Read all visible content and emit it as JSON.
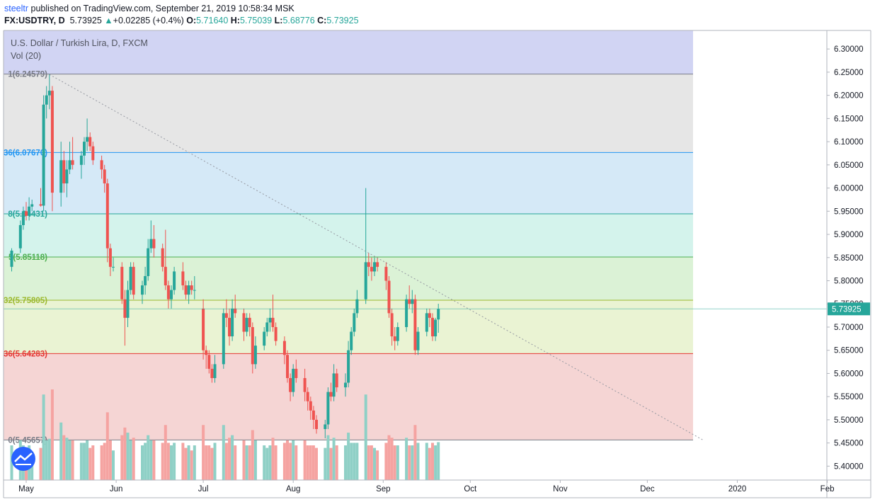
{
  "header": {
    "author": "steeltr",
    "published_text": "published on TradingView.com, September 21, 2019 10:58:34 MSK",
    "symbol": "FX:USDTRY, D",
    "last": "5.73925",
    "change": "+0.02285 (+0.4%)",
    "o_label": "O:",
    "o_value": "5.71640",
    "h_label": "H:",
    "h_value": "5.75039",
    "l_label": "L:",
    "l_value": "5.68776",
    "c_label": "C:",
    "c_value": "5.73925"
  },
  "colors": {
    "up": "#26a69a",
    "down": "#ef5350",
    "vol_up": "#8fd0c6",
    "vol_down": "#f5a3a1"
  },
  "chart_data": {
    "type": "candlestick",
    "title": "U.S. Dollar / Turkish Lira, D, FXCM",
    "volume_label": "Vol (20)",
    "ylim": [
      5.37,
      6.34
    ],
    "y_ticks": [
      "6.30000",
      "6.25000",
      "6.20000",
      "6.15000",
      "6.10000",
      "6.05000",
      "6.00000",
      "5.95000",
      "5.90000",
      "5.85000",
      "5.80000",
      "5.75000",
      "5.70000",
      "5.65000",
      "5.60000",
      "5.55000",
      "5.50000",
      "5.45000",
      "5.40000"
    ],
    "x_ticks": [
      {
        "label": "May",
        "date": "2019-05-01"
      },
      {
        "label": "Jun",
        "date": "2019-06-01"
      },
      {
        "label": "Jul",
        "date": "2019-07-01"
      },
      {
        "label": "Aug",
        "date": "2019-08-01"
      },
      {
        "label": "Sep",
        "date": "2019-09-01"
      },
      {
        "label": "Oct",
        "date": "2019-10-01"
      },
      {
        "label": "Nov",
        "date": "2019-11-01"
      },
      {
        "label": "Dec",
        "date": "2019-12-01"
      },
      {
        "label": "2020",
        "date": "2020-01-01"
      },
      {
        "label": "Feb",
        "date": "2020-02-01"
      }
    ],
    "last_price": "5.73925",
    "last_value": 5.73925,
    "fib_levels": [
      {
        "label": "1(6.24579)",
        "value": 6.24579,
        "color": "#787b86",
        "fill": "#e6e6e6"
      },
      {
        "label": "36(6.07670)",
        "value": 6.0767,
        "color": "#2196f3",
        "fill": "#d5e9f7"
      },
      {
        "label": "8(5.94431)",
        "value": 5.94431,
        "color": "#26a69a",
        "fill": "#d4f3ec"
      },
      {
        "label": "5(5.85118)",
        "value": 5.85118,
        "color": "#4caf50",
        "fill": "#dbf2d6"
      },
      {
        "label": "32(5.75805)",
        "value": 5.75805,
        "color": "#9cb92e",
        "fill": "#eaf3d3"
      },
      {
        "label": "36(5.64283)",
        "value": 5.64283,
        "color": "#e53935",
        "fill": "#f5d5d4"
      },
      {
        "label": "0(5.45657)",
        "value": 5.45657,
        "color": "#787b86",
        "fill": null
      }
    ],
    "fib_top_fill": "#d1d4f3",
    "trendline": {
      "start": {
        "date": "2019-05-09",
        "value": 6.245
      },
      "end": {
        "date": "2019-12-20",
        "value": 5.457
      }
    },
    "candles": [
      {
        "date": "2019-04-26",
        "o": 5.83,
        "h": 5.87,
        "l": 5.82,
        "c": 5.865
      },
      {
        "date": "2019-04-29",
        "o": 5.87,
        "h": 5.93,
        "l": 5.86,
        "c": 5.92
      },
      {
        "date": "2019-04-30",
        "o": 5.92,
        "h": 5.96,
        "l": 5.91,
        "c": 5.95
      },
      {
        "date": "2019-05-01",
        "o": 5.95,
        "h": 5.97,
        "l": 5.93,
        "c": 5.94
      },
      {
        "date": "2019-05-02",
        "o": 5.94,
        "h": 5.98,
        "l": 5.93,
        "c": 5.96
      },
      {
        "date": "2019-05-03",
        "o": 5.96,
        "h": 5.975,
        "l": 5.95,
        "c": 5.965
      },
      {
        "date": "2019-05-06",
        "o": 5.965,
        "h": 6.0,
        "l": 5.96,
        "c": 5.962
      },
      {
        "date": "2019-05-07",
        "o": 5.962,
        "h": 6.2,
        "l": 5.95,
        "c": 6.18
      },
      {
        "date": "2019-05-08",
        "o": 6.18,
        "h": 6.22,
        "l": 6.15,
        "c": 6.2
      },
      {
        "date": "2019-05-09",
        "o": 6.2,
        "h": 6.246,
        "l": 6.17,
        "c": 6.21
      },
      {
        "date": "2019-05-10",
        "o": 6.21,
        "h": 6.22,
        "l": 5.95,
        "c": 5.99
      },
      {
        "date": "2019-05-13",
        "o": 5.99,
        "h": 6.1,
        "l": 5.96,
        "c": 6.06
      },
      {
        "date": "2019-05-14",
        "o": 6.06,
        "h": 6.08,
        "l": 5.99,
        "c": 6.01
      },
      {
        "date": "2019-05-15",
        "o": 6.01,
        "h": 6.06,
        "l": 5.98,
        "c": 6.04
      },
      {
        "date": "2019-05-16",
        "o": 6.04,
        "h": 6.1,
        "l": 6.03,
        "c": 6.06
      },
      {
        "date": "2019-05-17",
        "o": 6.06,
        "h": 6.11,
        "l": 6.04,
        "c": 6.05
      },
      {
        "date": "2019-05-20",
        "o": 6.05,
        "h": 6.08,
        "l": 6.02,
        "c": 6.07
      },
      {
        "date": "2019-05-21",
        "o": 6.07,
        "h": 6.11,
        "l": 6.05,
        "c": 6.1
      },
      {
        "date": "2019-05-22",
        "o": 6.1,
        "h": 6.15,
        "l": 6.08,
        "c": 6.11
      },
      {
        "date": "2019-05-23",
        "o": 6.11,
        "h": 6.12,
        "l": 6.08,
        "c": 6.09
      },
      {
        "date": "2019-05-24",
        "o": 6.09,
        "h": 6.1,
        "l": 6.05,
        "c": 6.06
      },
      {
        "date": "2019-05-27",
        "o": 6.06,
        "h": 6.07,
        "l": 6.02,
        "c": 6.04
      },
      {
        "date": "2019-05-28",
        "o": 6.04,
        "h": 6.05,
        "l": 5.99,
        "c": 6.01
      },
      {
        "date": "2019-05-29",
        "o": 6.01,
        "h": 6.02,
        "l": 5.84,
        "c": 5.87
      },
      {
        "date": "2019-05-30",
        "o": 5.87,
        "h": 5.88,
        "l": 5.81,
        "c": 5.83
      },
      {
        "date": "2019-05-31",
        "o": 5.83,
        "h": 5.85,
        "l": 5.82,
        "c": 5.83
      },
      {
        "date": "2019-06-03",
        "o": 5.83,
        "h": 5.84,
        "l": 5.75,
        "c": 5.76
      },
      {
        "date": "2019-06-04",
        "o": 5.76,
        "h": 5.78,
        "l": 5.66,
        "c": 5.72
      },
      {
        "date": "2019-06-05",
        "o": 5.72,
        "h": 5.8,
        "l": 5.7,
        "c": 5.78
      },
      {
        "date": "2019-06-06",
        "o": 5.78,
        "h": 5.84,
        "l": 5.77,
        "c": 5.83
      },
      {
        "date": "2019-06-07",
        "o": 5.83,
        "h": 5.84,
        "l": 5.76,
        "c": 5.77
      },
      {
        "date": "2019-06-10",
        "o": 5.77,
        "h": 5.8,
        "l": 5.75,
        "c": 5.79
      },
      {
        "date": "2019-06-11",
        "o": 5.79,
        "h": 5.83,
        "l": 5.77,
        "c": 5.81
      },
      {
        "date": "2019-06-12",
        "o": 5.81,
        "h": 5.89,
        "l": 5.8,
        "c": 5.87
      },
      {
        "date": "2019-06-13",
        "o": 5.87,
        "h": 5.93,
        "l": 5.86,
        "c": 5.89
      },
      {
        "date": "2019-06-14",
        "o": 5.89,
        "h": 5.92,
        "l": 5.85,
        "c": 5.87
      },
      {
        "date": "2019-06-17",
        "o": 5.87,
        "h": 5.88,
        "l": 5.82,
        "c": 5.83
      },
      {
        "date": "2019-06-18",
        "o": 5.83,
        "h": 5.91,
        "l": 5.78,
        "c": 5.79
      },
      {
        "date": "2019-06-19",
        "o": 5.79,
        "h": 5.8,
        "l": 5.74,
        "c": 5.76
      },
      {
        "date": "2019-06-20",
        "o": 5.76,
        "h": 5.79,
        "l": 5.74,
        "c": 5.78
      },
      {
        "date": "2019-06-21",
        "o": 5.78,
        "h": 5.83,
        "l": 5.77,
        "c": 5.82
      },
      {
        "date": "2019-06-24",
        "o": 5.82,
        "h": 5.84,
        "l": 5.78,
        "c": 5.79
      },
      {
        "date": "2019-06-25",
        "o": 5.79,
        "h": 5.8,
        "l": 5.76,
        "c": 5.77
      },
      {
        "date": "2019-06-26",
        "o": 5.77,
        "h": 5.8,
        "l": 5.75,
        "c": 5.79
      },
      {
        "date": "2019-06-27",
        "o": 5.79,
        "h": 5.8,
        "l": 5.77,
        "c": 5.78
      },
      {
        "date": "2019-06-28",
        "o": 5.78,
        "h": 5.81,
        "l": 5.76,
        "c": 5.78
      },
      {
        "date": "2019-07-01",
        "o": 5.74,
        "h": 5.76,
        "l": 5.63,
        "c": 5.65
      },
      {
        "date": "2019-07-02",
        "o": 5.65,
        "h": 5.66,
        "l": 5.61,
        "c": 5.64
      },
      {
        "date": "2019-07-03",
        "o": 5.64,
        "h": 5.65,
        "l": 5.6,
        "c": 5.61
      },
      {
        "date": "2019-07-04",
        "o": 5.61,
        "h": 5.62,
        "l": 5.58,
        "c": 5.59
      },
      {
        "date": "2019-07-05",
        "o": 5.59,
        "h": 5.64,
        "l": 5.58,
        "c": 5.62
      },
      {
        "date": "2019-07-08",
        "o": 5.62,
        "h": 5.74,
        "l": 5.61,
        "c": 5.73
      },
      {
        "date": "2019-07-09",
        "o": 5.73,
        "h": 5.76,
        "l": 5.7,
        "c": 5.72
      },
      {
        "date": "2019-07-10",
        "o": 5.72,
        "h": 5.74,
        "l": 5.66,
        "c": 5.68
      },
      {
        "date": "2019-07-11",
        "o": 5.68,
        "h": 5.76,
        "l": 5.67,
        "c": 5.74
      },
      {
        "date": "2019-07-12",
        "o": 5.74,
        "h": 5.77,
        "l": 5.72,
        "c": 5.73
      },
      {
        "date": "2019-07-15",
        "o": 5.73,
        "h": 5.74,
        "l": 5.67,
        "c": 5.69
      },
      {
        "date": "2019-07-16",
        "o": 5.69,
        "h": 5.73,
        "l": 5.68,
        "c": 5.72
      },
      {
        "date": "2019-07-17",
        "o": 5.72,
        "h": 5.73,
        "l": 5.68,
        "c": 5.7
      },
      {
        "date": "2019-07-18",
        "o": 5.7,
        "h": 5.71,
        "l": 5.6,
        "c": 5.62
      },
      {
        "date": "2019-07-19",
        "o": 5.62,
        "h": 5.68,
        "l": 5.61,
        "c": 5.66
      },
      {
        "date": "2019-07-22",
        "o": 5.66,
        "h": 5.7,
        "l": 5.65,
        "c": 5.69
      },
      {
        "date": "2019-07-23",
        "o": 5.69,
        "h": 5.72,
        "l": 5.68,
        "c": 5.71
      },
      {
        "date": "2019-07-24",
        "o": 5.71,
        "h": 5.74,
        "l": 5.69,
        "c": 5.72
      },
      {
        "date": "2019-07-25",
        "o": 5.72,
        "h": 5.77,
        "l": 5.69,
        "c": 5.7
      },
      {
        "date": "2019-07-26",
        "o": 5.7,
        "h": 5.71,
        "l": 5.66,
        "c": 5.67
      },
      {
        "date": "2019-07-29",
        "o": 5.67,
        "h": 5.68,
        "l": 5.62,
        "c": 5.64
      },
      {
        "date": "2019-07-30",
        "o": 5.64,
        "h": 5.65,
        "l": 5.58,
        "c": 5.59
      },
      {
        "date": "2019-07-31",
        "o": 5.59,
        "h": 5.6,
        "l": 5.54,
        "c": 5.56
      },
      {
        "date": "2019-08-01",
        "o": 5.56,
        "h": 5.62,
        "l": 5.55,
        "c": 5.61
      },
      {
        "date": "2019-08-02",
        "o": 5.61,
        "h": 5.63,
        "l": 5.58,
        "c": 5.59
      },
      {
        "date": "2019-08-05",
        "o": 5.59,
        "h": 5.61,
        "l": 5.54,
        "c": 5.56
      },
      {
        "date": "2019-08-06",
        "o": 5.56,
        "h": 5.57,
        "l": 5.52,
        "c": 5.54
      },
      {
        "date": "2019-08-07",
        "o": 5.54,
        "h": 5.55,
        "l": 5.5,
        "c": 5.52
      },
      {
        "date": "2019-08-08",
        "o": 5.52,
        "h": 5.53,
        "l": 5.48,
        "c": 5.5
      },
      {
        "date": "2019-08-09",
        "o": 5.5,
        "h": 5.51,
        "l": 5.47,
        "c": 5.48
      },
      {
        "date": "2019-08-12",
        "o": 5.48,
        "h": 5.5,
        "l": 5.46,
        "c": 5.49
      },
      {
        "date": "2019-08-13",
        "o": 5.49,
        "h": 5.57,
        "l": 5.48,
        "c": 5.56
      },
      {
        "date": "2019-08-14",
        "o": 5.56,
        "h": 5.58,
        "l": 5.54,
        "c": 5.55
      },
      {
        "date": "2019-08-15",
        "o": 5.55,
        "h": 5.62,
        "l": 5.54,
        "c": 5.6
      },
      {
        "date": "2019-08-16",
        "o": 5.6,
        "h": 5.61,
        "l": 5.56,
        "c": 5.57
      },
      {
        "date": "2019-08-19",
        "o": 5.57,
        "h": 5.6,
        "l": 5.55,
        "c": 5.58
      },
      {
        "date": "2019-08-20",
        "o": 5.58,
        "h": 5.67,
        "l": 5.57,
        "c": 5.65
      },
      {
        "date": "2019-08-21",
        "o": 5.65,
        "h": 5.7,
        "l": 5.64,
        "c": 5.69
      },
      {
        "date": "2019-08-22",
        "o": 5.69,
        "h": 5.74,
        "l": 5.68,
        "c": 5.73
      },
      {
        "date": "2019-08-23",
        "o": 5.73,
        "h": 5.78,
        "l": 5.72,
        "c": 5.76
      },
      {
        "date": "2019-08-26",
        "o": 5.76,
        "h": 6.0,
        "l": 5.75,
        "c": 5.84
      },
      {
        "date": "2019-08-27",
        "o": 5.84,
        "h": 5.86,
        "l": 5.81,
        "c": 5.83
      },
      {
        "date": "2019-08-28",
        "o": 5.83,
        "h": 5.85,
        "l": 5.8,
        "c": 5.82
      },
      {
        "date": "2019-08-29",
        "o": 5.82,
        "h": 5.85,
        "l": 5.81,
        "c": 5.84
      },
      {
        "date": "2019-08-30",
        "o": 5.84,
        "h": 5.85,
        "l": 5.82,
        "c": 5.83
      },
      {
        "date": "2019-09-02",
        "o": 5.83,
        "h": 5.84,
        "l": 5.78,
        "c": 5.8
      },
      {
        "date": "2019-09-03",
        "o": 5.8,
        "h": 5.81,
        "l": 5.72,
        "c": 5.73
      },
      {
        "date": "2019-09-04",
        "o": 5.73,
        "h": 5.74,
        "l": 5.66,
        "c": 5.68
      },
      {
        "date": "2019-09-05",
        "o": 5.68,
        "h": 5.7,
        "l": 5.65,
        "c": 5.67
      },
      {
        "date": "2019-09-06",
        "o": 5.67,
        "h": 5.71,
        "l": 5.66,
        "c": 5.7
      },
      {
        "date": "2019-09-09",
        "o": 5.7,
        "h": 5.77,
        "l": 5.69,
        "c": 5.76
      },
      {
        "date": "2019-09-10",
        "o": 5.76,
        "h": 5.79,
        "l": 5.74,
        "c": 5.75
      },
      {
        "date": "2019-09-11",
        "o": 5.75,
        "h": 5.78,
        "l": 5.73,
        "c": 5.76
      },
      {
        "date": "2019-09-12",
        "o": 5.76,
        "h": 5.77,
        "l": 5.64,
        "c": 5.65
      },
      {
        "date": "2019-09-13",
        "o": 5.65,
        "h": 5.7,
        "l": 5.64,
        "c": 5.69
      },
      {
        "date": "2019-09-16",
        "o": 5.69,
        "h": 5.74,
        "l": 5.68,
        "c": 5.73
      },
      {
        "date": "2019-09-17",
        "o": 5.73,
        "h": 5.74,
        "l": 5.7,
        "c": 5.72
      },
      {
        "date": "2019-09-18",
        "o": 5.72,
        "h": 5.73,
        "l": 5.67,
        "c": 5.68
      },
      {
        "date": "2019-09-19",
        "o": 5.68,
        "h": 5.72,
        "l": 5.67,
        "c": 5.716
      },
      {
        "date": "2019-09-20",
        "o": 5.7164,
        "h": 5.75039,
        "l": 5.68776,
        "c": 5.73925
      }
    ]
  }
}
